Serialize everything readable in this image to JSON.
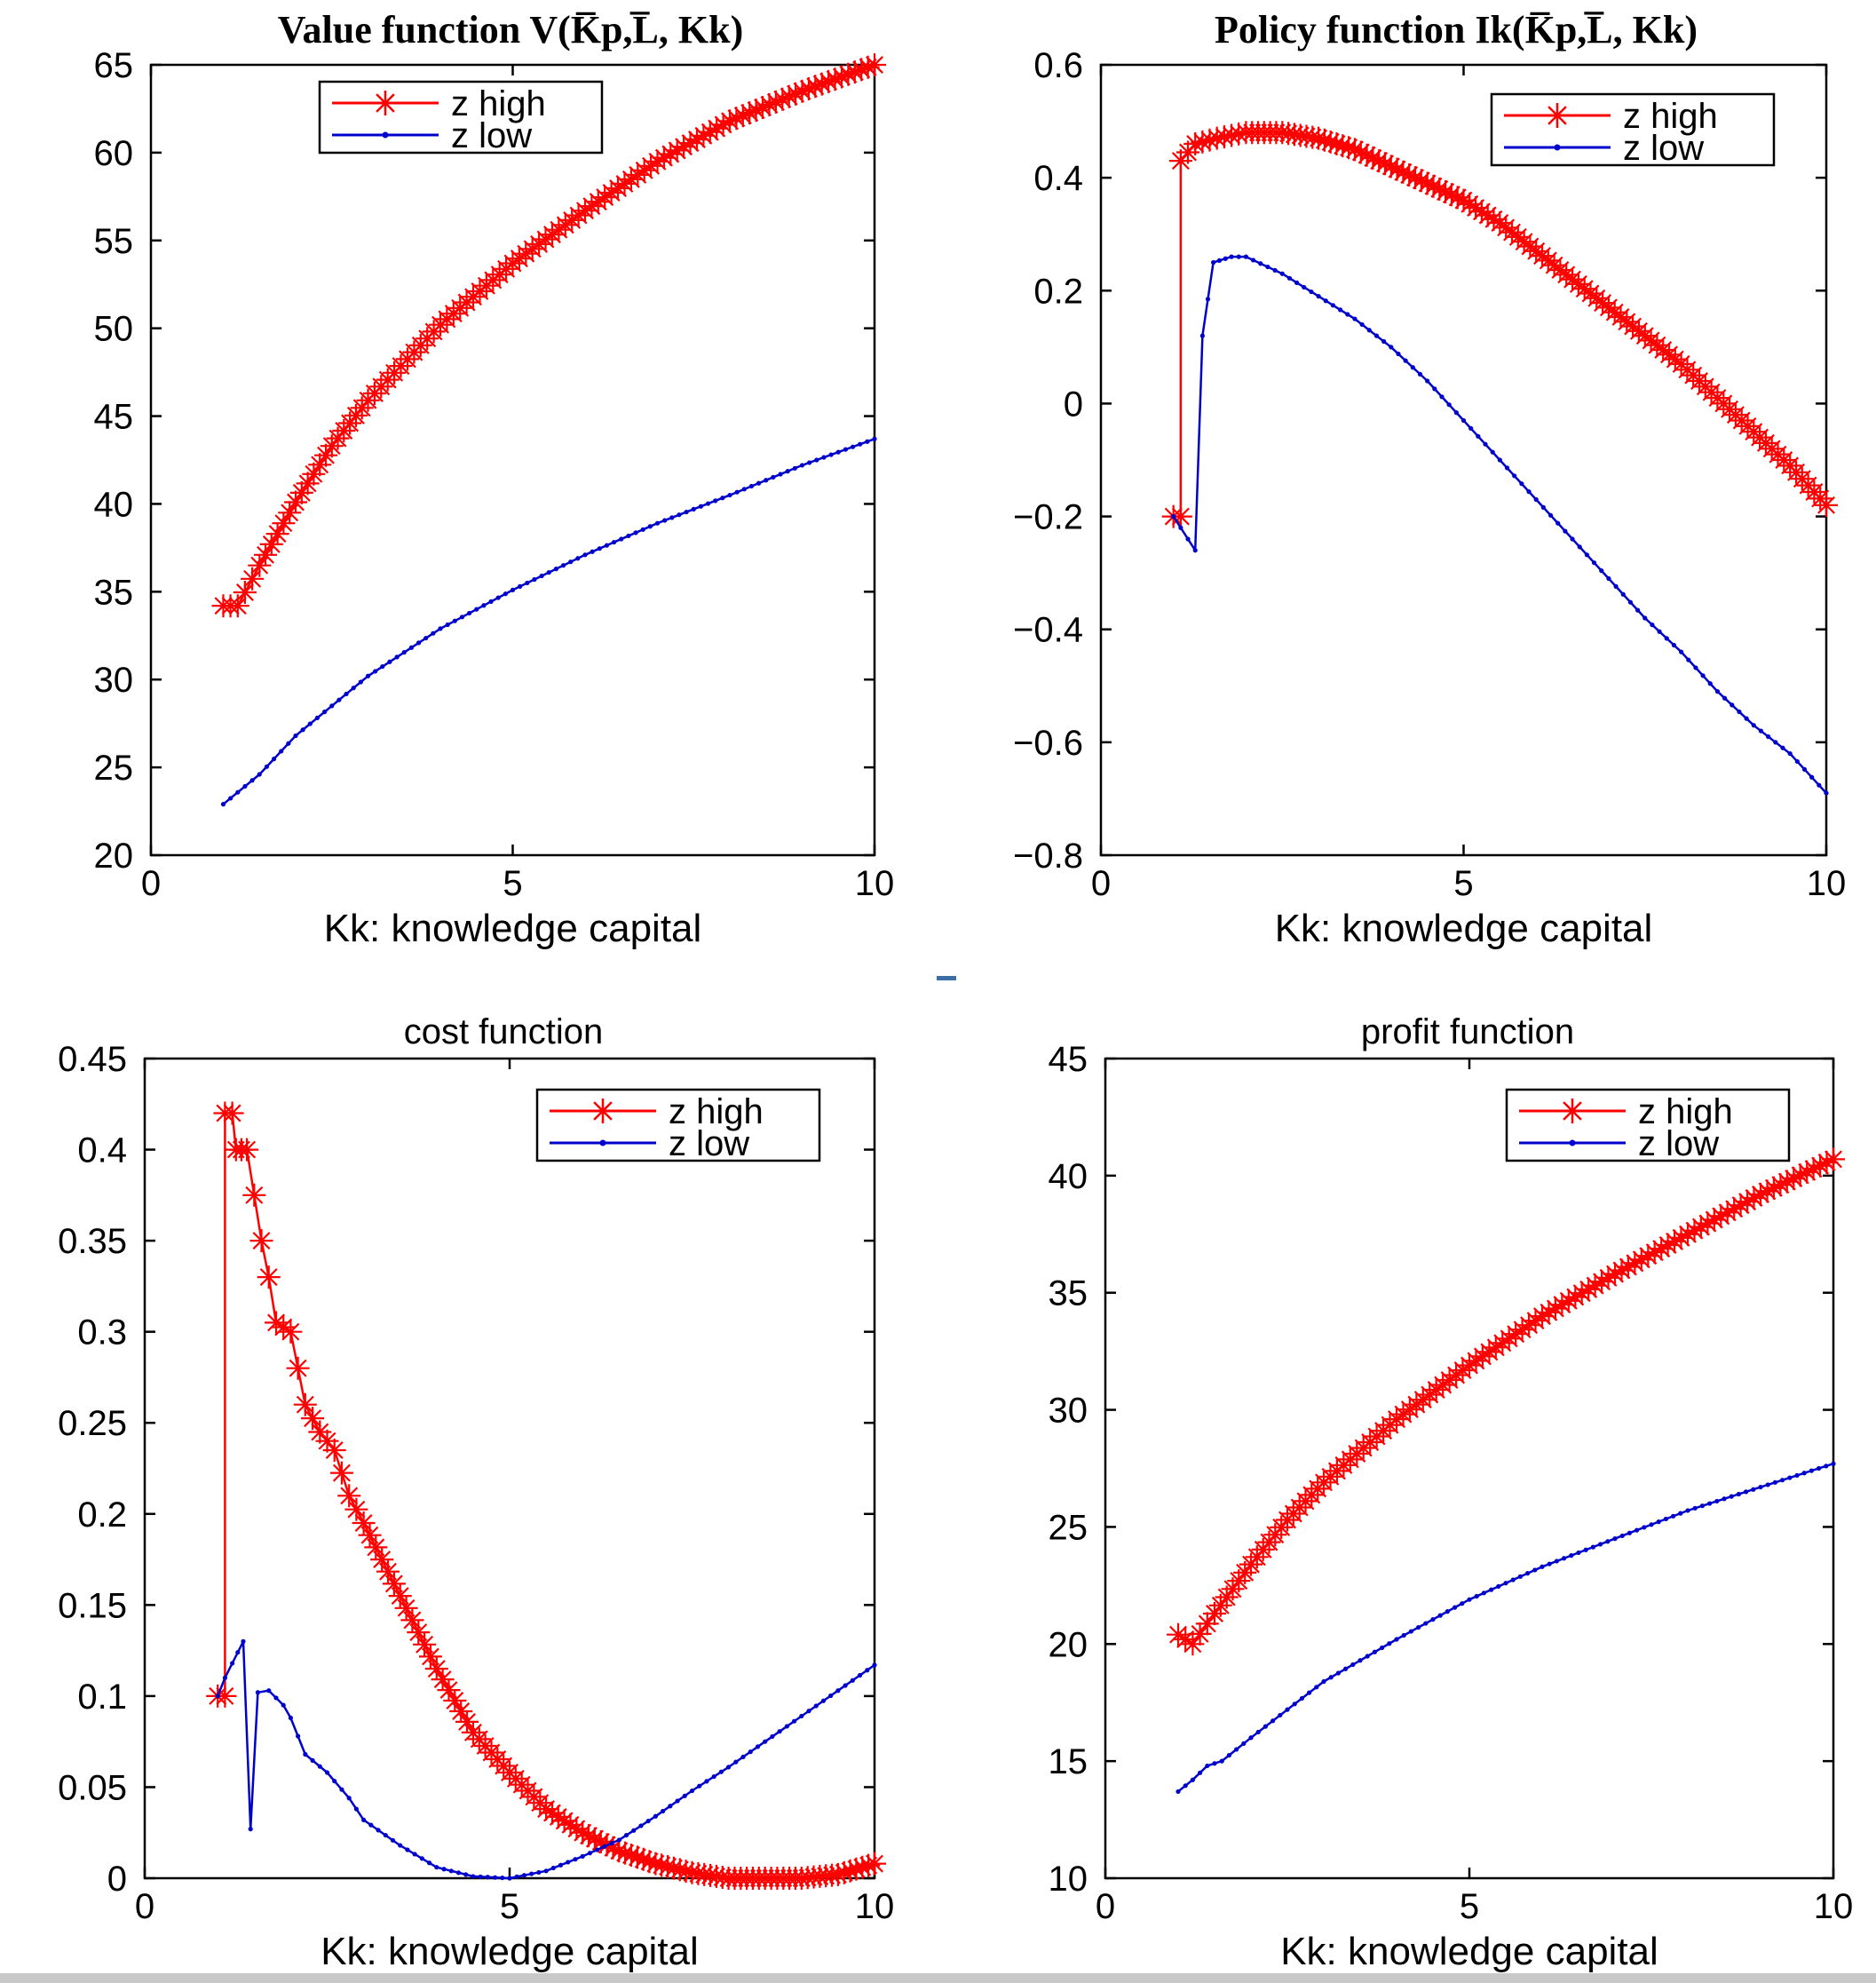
{
  "colors": {
    "high": "#ff0000",
    "low": "#0000cc",
    "axis": "#000000",
    "background": "#ffffff"
  },
  "legend": {
    "high": "z high",
    "low": "z low",
    "placement": "top"
  },
  "chart_data": [
    {
      "id": "value",
      "type": "line",
      "title": "Value function V(K̅p,L̅, Kk)",
      "xlabel": "Kk: knowledge capital",
      "ylabel": "",
      "xlim": [
        0,
        10
      ],
      "ylim": [
        20,
        65
      ],
      "xticks": [
        0,
        5,
        10
      ],
      "yticks": [
        20,
        25,
        30,
        35,
        40,
        45,
        50,
        55,
        60,
        65
      ],
      "legend_items": [
        "z high",
        "z low"
      ],
      "series": [
        {
          "name": "z high",
          "marker": "star",
          "points": [
            [
              1.0,
              34.2
            ],
            [
              1.2,
              34.2
            ],
            [
              1.5,
              36.5
            ],
            [
              2.0,
              40.1
            ],
            [
              2.5,
              43.3
            ],
            [
              3.0,
              45.9
            ],
            [
              4.0,
              50.2
            ],
            [
              5.0,
              53.7
            ],
            [
              6.0,
              56.7
            ],
            [
              7.0,
              59.5
            ],
            [
              8.0,
              61.8
            ],
            [
              9.0,
              63.5
            ],
            [
              10.0,
              65.0
            ]
          ]
        },
        {
          "name": "z low",
          "marker": "dot",
          "points": [
            [
              1.0,
              22.9
            ],
            [
              1.5,
              24.6
            ],
            [
              2.0,
              26.8
            ],
            [
              3.0,
              30.2
            ],
            [
              4.0,
              32.9
            ],
            [
              5.0,
              35.1
            ],
            [
              6.0,
              37.1
            ],
            [
              7.0,
              38.9
            ],
            [
              8.0,
              40.5
            ],
            [
              9.0,
              42.2
            ],
            [
              10.0,
              43.7
            ]
          ]
        }
      ]
    },
    {
      "id": "policy",
      "type": "line",
      "title": "Policy function Ik(K̅p,L̅, Kk)",
      "xlabel": "Kk: knowledge capital",
      "ylabel": "",
      "xlim": [
        0,
        10
      ],
      "ylim": [
        -0.8,
        0.6
      ],
      "xticks": [
        0,
        5,
        10
      ],
      "yticks": [
        -0.8,
        -0.6,
        -0.4,
        -0.2,
        0,
        0.2,
        0.4,
        0.6
      ],
      "ytick_labels": [
        "−0.8",
        "−0.6",
        "−0.4",
        "−0.2",
        "0",
        "0.2",
        "0.4",
        "0.6"
      ],
      "legend_items": [
        "z high",
        "z low"
      ],
      "series": [
        {
          "name": "z high",
          "marker": "star",
          "points": [
            [
              1.0,
              -0.2
            ],
            [
              1.1,
              -0.2
            ],
            [
              1.1,
              0.43
            ],
            [
              1.3,
              0.46
            ],
            [
              1.6,
              0.47
            ],
            [
              2.0,
              0.48
            ],
            [
              2.5,
              0.48
            ],
            [
              3.0,
              0.47
            ],
            [
              3.5,
              0.45
            ],
            [
              4.0,
              0.42
            ],
            [
              4.5,
              0.39
            ],
            [
              5.0,
              0.36
            ],
            [
              5.5,
              0.32
            ],
            [
              6.0,
              0.27
            ],
            [
              6.5,
              0.22
            ],
            [
              7.0,
              0.17
            ],
            [
              7.5,
              0.12
            ],
            [
              8.0,
              0.07
            ],
            [
              8.5,
              0.01
            ],
            [
              9.0,
              -0.05
            ],
            [
              9.5,
              -0.11
            ],
            [
              10.0,
              -0.18
            ]
          ]
        },
        {
          "name": "z low",
          "marker": "dot",
          "points": [
            [
              1.0,
              -0.2
            ],
            [
              1.3,
              -0.26
            ],
            [
              1.4,
              0.12
            ],
            [
              1.55,
              0.25
            ],
            [
              1.8,
              0.26
            ],
            [
              2.0,
              0.26
            ],
            [
              2.5,
              0.23
            ],
            [
              3.0,
              0.19
            ],
            [
              3.5,
              0.15
            ],
            [
              4.0,
              0.1
            ],
            [
              4.5,
              0.04
            ],
            [
              5.0,
              -0.03
            ],
            [
              5.5,
              -0.1
            ],
            [
              6.0,
              -0.17
            ],
            [
              6.5,
              -0.24
            ],
            [
              7.0,
              -0.31
            ],
            [
              7.5,
              -0.38
            ],
            [
              8.0,
              -0.44
            ],
            [
              8.5,
              -0.51
            ],
            [
              9.0,
              -0.57
            ],
            [
              9.5,
              -0.62
            ],
            [
              10.0,
              -0.69
            ]
          ]
        }
      ]
    },
    {
      "id": "cost",
      "type": "line",
      "title": "cost function",
      "xlabel": "Kk: knowledge capital",
      "ylabel": "",
      "xlim": [
        0,
        10
      ],
      "ylim": [
        0,
        0.45
      ],
      "xticks": [
        0,
        5,
        10
      ],
      "yticks": [
        0,
        0.05,
        0.1,
        0.15,
        0.2,
        0.25,
        0.3,
        0.35,
        0.4,
        0.45
      ],
      "legend_items": [
        "z high",
        "z low"
      ],
      "series": [
        {
          "name": "z high",
          "marker": "star",
          "points": [
            [
              1.0,
              0.1
            ],
            [
              1.1,
              0.1
            ],
            [
              1.1,
              0.42
            ],
            [
              1.2,
              0.42
            ],
            [
              1.25,
              0.4
            ],
            [
              1.4,
              0.4
            ],
            [
              1.5,
              0.375
            ],
            [
              1.6,
              0.35
            ],
            [
              1.7,
              0.33
            ],
            [
              1.8,
              0.305
            ],
            [
              2.0,
              0.3
            ],
            [
              2.1,
              0.28
            ],
            [
              2.2,
              0.26
            ],
            [
              2.4,
              0.245
            ],
            [
              2.6,
              0.235
            ],
            [
              2.8,
              0.21
            ],
            [
              3.0,
              0.195
            ],
            [
              3.5,
              0.155
            ],
            [
              4.0,
              0.115
            ],
            [
              4.5,
              0.08
            ],
            [
              5.0,
              0.058
            ],
            [
              5.5,
              0.038
            ],
            [
              6.0,
              0.025
            ],
            [
              6.5,
              0.015
            ],
            [
              7.0,
              0.008
            ],
            [
              7.5,
              0.003
            ],
            [
              8.0,
              0.0
            ],
            [
              8.5,
              0.0
            ],
            [
              9.0,
              0.0
            ],
            [
              9.5,
              0.002
            ],
            [
              10.0,
              0.008
            ]
          ]
        },
        {
          "name": "z low",
          "marker": "dot",
          "points": [
            [
              1.0,
              0.1
            ],
            [
              1.1,
              0.11
            ],
            [
              1.2,
              0.118
            ],
            [
              1.35,
              0.13
            ],
            [
              1.45,
              0.027
            ],
            [
              1.55,
              0.102
            ],
            [
              1.7,
              0.103
            ],
            [
              1.9,
              0.095
            ],
            [
              2.0,
              0.088
            ],
            [
              2.2,
              0.068
            ],
            [
              2.5,
              0.058
            ],
            [
              2.8,
              0.044
            ],
            [
              3.0,
              0.032
            ],
            [
              3.5,
              0.018
            ],
            [
              4.0,
              0.006
            ],
            [
              4.5,
              0.001
            ],
            [
              5.0,
              0.0
            ],
            [
              5.5,
              0.004
            ],
            [
              6.0,
              0.012
            ],
            [
              6.5,
              0.021
            ],
            [
              7.0,
              0.034
            ],
            [
              7.5,
              0.048
            ],
            [
              8.0,
              0.061
            ],
            [
              8.5,
              0.075
            ],
            [
              9.0,
              0.089
            ],
            [
              9.5,
              0.103
            ],
            [
              10.0,
              0.117
            ]
          ]
        }
      ]
    },
    {
      "id": "profit",
      "type": "line",
      "title": "profit function",
      "xlabel": "Kk: knowledge capital",
      "ylabel": "",
      "xlim": [
        0,
        10
      ],
      "ylim": [
        10,
        45
      ],
      "xticks": [
        0,
        5,
        10
      ],
      "yticks": [
        10,
        15,
        20,
        25,
        30,
        35,
        40,
        45
      ],
      "legend_items": [
        "z high",
        "z low"
      ],
      "series": [
        {
          "name": "z high",
          "marker": "star",
          "points": [
            [
              1.0,
              20.4
            ],
            [
              1.2,
              20.0
            ],
            [
              1.5,
              21.3
            ],
            [
              2.0,
              23.4
            ],
            [
              2.5,
              25.3
            ],
            [
              3.0,
              26.9
            ],
            [
              4.0,
              29.6
            ],
            [
              5.0,
              31.9
            ],
            [
              6.0,
              34.0
            ],
            [
              7.0,
              35.8
            ],
            [
              8.0,
              37.5
            ],
            [
              9.0,
              39.2
            ],
            [
              10.0,
              40.7
            ]
          ]
        },
        {
          "name": "z low",
          "marker": "dot",
          "points": [
            [
              1.0,
              13.7
            ],
            [
              1.2,
              14.2
            ],
            [
              1.4,
              14.8
            ],
            [
              1.6,
              15.0
            ],
            [
              2.0,
              16.0
            ],
            [
              3.0,
              18.4
            ],
            [
              4.0,
              20.2
            ],
            [
              5.0,
              21.9
            ],
            [
              6.0,
              23.3
            ],
            [
              7.0,
              24.5
            ],
            [
              8.0,
              25.7
            ],
            [
              9.0,
              26.7
            ],
            [
              10.0,
              27.7
            ]
          ]
        }
      ]
    }
  ]
}
